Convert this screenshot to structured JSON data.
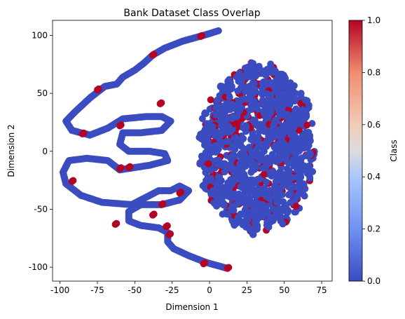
{
  "chart_data": {
    "type": "scatter",
    "title": "Bank Dataset Class Overlap",
    "xlabel": "Dimension 1",
    "ylabel": "Dimension 2",
    "xlim": [
      -105,
      82
    ],
    "ylim": [
      -112,
      113
    ],
    "xticks": [
      -100,
      -75,
      -50,
      -25,
      0,
      25,
      50,
      75
    ],
    "yticks": [
      -100,
      -50,
      0,
      50,
      100
    ],
    "grid": false,
    "colormap": "coolwarm",
    "colorbar": {
      "label": "Class",
      "range": [
        0,
        1
      ],
      "ticks": [
        "0.0",
        "0.2",
        "0.4",
        "0.6",
        "0.8",
        "1.0"
      ],
      "color_low": "#3b4cc0",
      "color_mid": "#dddddd",
      "color_high": "#b40426"
    },
    "series": [
      {
        "class": 0,
        "color": "#3b4cc0",
        "curve": [
          [
            6,
            104
          ],
          [
            -4,
            100
          ],
          [
            -18,
            95
          ],
          [
            -30,
            89
          ],
          [
            -38,
            83
          ],
          [
            -44,
            76
          ],
          [
            -50,
            70
          ],
          [
            -58,
            64
          ],
          [
            -62,
            58
          ],
          [
            -70,
            56
          ],
          [
            -80,
            46
          ],
          [
            -90,
            34
          ],
          [
            -96,
            26
          ],
          [
            -92,
            18
          ],
          [
            -80,
            14
          ],
          [
            -68,
            20
          ],
          [
            -58,
            28
          ],
          [
            -42,
            30
          ],
          [
            -32,
            30
          ],
          [
            -26,
            26
          ],
          [
            -32,
            18
          ],
          [
            -46,
            16
          ],
          [
            -58,
            16
          ],
          [
            -60,
            6
          ],
          [
            -54,
            0
          ],
          [
            -40,
            0
          ],
          [
            -30,
            -2
          ],
          [
            -28,
            -8
          ],
          [
            -40,
            -12
          ],
          [
            -60,
            -16
          ],
          [
            -68,
            -8
          ],
          [
            -82,
            -6
          ],
          [
            -94,
            -8
          ],
          [
            -98,
            -18
          ],
          [
            -96,
            -28
          ],
          [
            -86,
            -38
          ],
          [
            -72,
            -44
          ],
          [
            -52,
            -46
          ],
          [
            -34,
            -34
          ],
          [
            -26,
            -34
          ],
          [
            -20,
            -30
          ],
          [
            -14,
            -34
          ],
          [
            -20,
            -42
          ],
          [
            -32,
            -46
          ],
          [
            -46,
            -46
          ],
          [
            -54,
            -52
          ],
          [
            -54,
            -60
          ],
          [
            -46,
            -64
          ],
          [
            -34,
            -66
          ],
          [
            -28,
            -70
          ],
          [
            -28,
            -78
          ],
          [
            -24,
            -84
          ],
          [
            -14,
            -90
          ],
          [
            -2,
            -96
          ],
          [
            12,
            -101
          ]
        ],
        "class1_points": [
          [
            -6,
            99
          ],
          [
            -38,
            83
          ],
          [
            -75,
            53
          ],
          [
            -92,
            -26
          ],
          [
            -85,
            15
          ],
          [
            -60,
            22
          ],
          [
            -33,
            41
          ],
          [
            -54,
            -14
          ],
          [
            -60,
            -15
          ],
          [
            -32,
            -46
          ],
          [
            -38,
            -55
          ],
          [
            -63,
            -63
          ],
          [
            -29,
            -65
          ],
          [
            -4,
            -97
          ],
          [
            12,
            -101
          ],
          [
            -20,
            -36
          ],
          [
            -27,
            -72
          ]
        ]
      },
      {
        "class": 1,
        "color": "#b40426",
        "cluster_bounds": {
          "x": [
            -8,
            72
          ],
          "y": [
            -72,
            78
          ]
        }
      }
    ]
  }
}
